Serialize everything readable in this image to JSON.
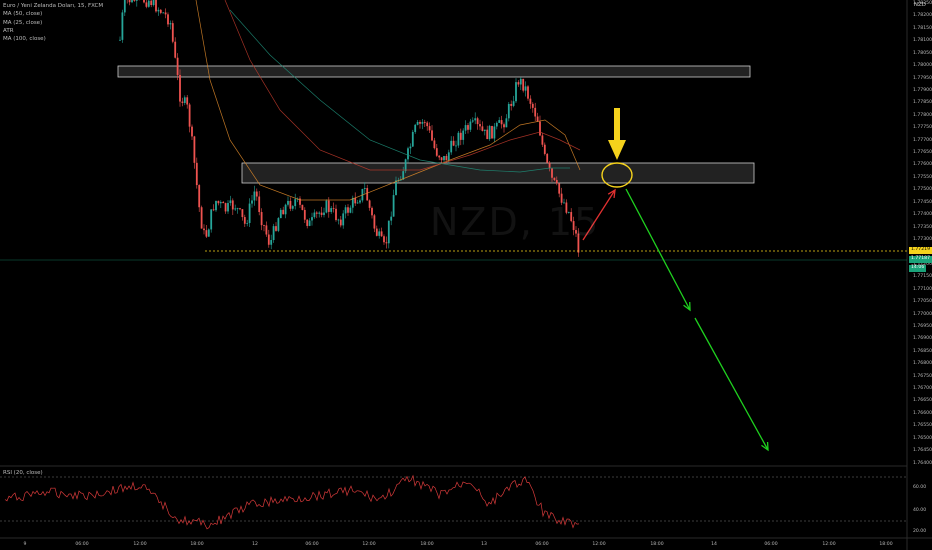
{
  "legend": {
    "symbol": "Euro / Yeni Zelanda Doları, 15, FXCM",
    "ind1": "MA (50, close)",
    "ind2": "MA (25, close)",
    "ind3": "ATR",
    "ind4": "MA (100, close)"
  },
  "rsi_legend": "RSI (20, close)",
  "corner_label": "NZD",
  "watermark": "NZD, 15",
  "price_axis": [
    "1.78250",
    "1.78200",
    "1.78150",
    "1.78100",
    "1.78050",
    "1.78000",
    "1.77950",
    "1.77900",
    "1.77850",
    "1.77800",
    "1.77750",
    "1.77700",
    "1.77650",
    "1.77600",
    "1.77550",
    "1.77500",
    "1.77450",
    "1.77400",
    "1.77350",
    "1.77300",
    "1.77250",
    "1.77200",
    "1.77150",
    "1.77100",
    "1.77050",
    "1.77000",
    "1.76950",
    "1.76900",
    "1.76850",
    "1.76800",
    "1.76750",
    "1.76700",
    "1.76650",
    "1.76600",
    "1.76550",
    "1.76500",
    "1.76450",
    "1.76400"
  ],
  "price_tags": {
    "yellow": "1.77219",
    "green": "1.77187",
    "green2": "14:06"
  },
  "rsi_axis": [
    "60.00",
    "40.00",
    "20.00"
  ],
  "time_axis": [
    "9",
    "06:00",
    "12:00",
    "18:00",
    "12",
    "06:00",
    "12:00",
    "18:00",
    "13",
    "06:00",
    "12:00",
    "18:00",
    "14",
    "06:00",
    "12:00",
    "18:00"
  ],
  "colors": {
    "up": "#26a69a",
    "down": "#ef5350",
    "zone": "#cfcfcf",
    "arrow_green": "#1fd11f",
    "arrow_red": "#e03030",
    "arrow_yellow": "#f5d21c",
    "rsi": "#d63a3a"
  }
}
